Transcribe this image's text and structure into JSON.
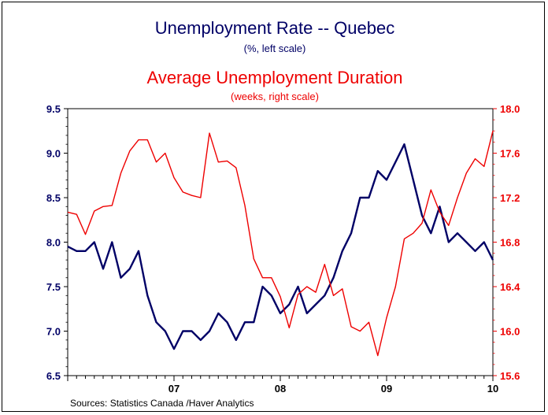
{
  "chart_data": {
    "type": "line",
    "title": "Unemployment Rate -- Quebec",
    "subtitle": "(%, left scale)",
    "title2": "Average Unemployment Duration",
    "subtitle2": "(weeks, right scale)",
    "source": "Sources:  Statistics Canada /Haver Analytics",
    "x_tick_labels": [
      "07",
      "08",
      "09",
      "10"
    ],
    "x_start": 2006.0,
    "x_end": 2010.0,
    "y_left": {
      "min": 6.5,
      "max": 9.5,
      "ticks": [
        "9.5",
        "9.0",
        "8.5",
        "8.0",
        "7.5",
        "7.0",
        "6.5"
      ],
      "color": "#000066"
    },
    "y_right": {
      "min": 15.6,
      "max": 18.0,
      "ticks": [
        "18.0",
        "17.6",
        "17.2",
        "16.8",
        "16.4",
        "16.0",
        "15.6"
      ],
      "color": "#ee0000"
    },
    "grid": false,
    "series": [
      {
        "axis": "left",
        "color": "#000066",
        "values": [
          7.95,
          7.9,
          7.9,
          8.0,
          7.7,
          8.0,
          7.6,
          7.7,
          7.9,
          7.4,
          7.1,
          7.0,
          6.8,
          7.0,
          7.0,
          6.9,
          7.0,
          7.2,
          7.1,
          6.9,
          7.1,
          7.1,
          7.5,
          7.4,
          7.2,
          7.3,
          7.5,
          7.2,
          7.3,
          7.4,
          7.6,
          7.9,
          8.1,
          8.5,
          8.5,
          8.8,
          8.7,
          8.9,
          9.1,
          8.7,
          8.3,
          8.1,
          8.4,
          8.0,
          8.1,
          8.0,
          7.9,
          8.0,
          7.8
        ]
      },
      {
        "axis": "right",
        "color": "#ee0000",
        "values": [
          17.07,
          17.05,
          16.87,
          17.08,
          17.12,
          17.13,
          17.42,
          17.62,
          17.72,
          17.72,
          17.52,
          17.6,
          17.38,
          17.25,
          17.22,
          17.2,
          17.78,
          17.52,
          17.53,
          17.47,
          17.13,
          16.65,
          16.48,
          16.48,
          16.31,
          16.03,
          16.33,
          16.4,
          16.35,
          16.6,
          16.32,
          16.38,
          16.04,
          16.0,
          16.08,
          15.78,
          16.12,
          16.4,
          16.83,
          16.88,
          16.97,
          17.27,
          17.07,
          16.95,
          17.2,
          17.42,
          17.55,
          17.48,
          17.8
        ]
      }
    ]
  }
}
